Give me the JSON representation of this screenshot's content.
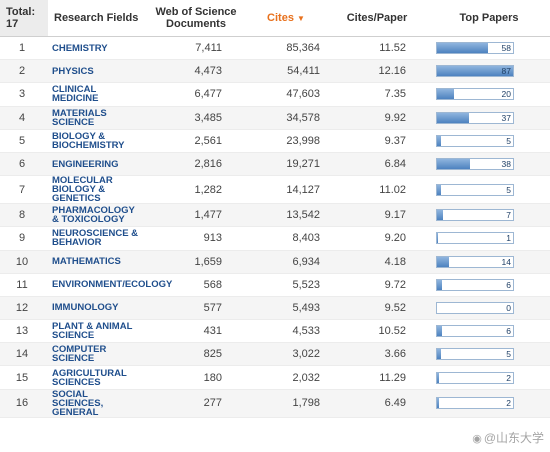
{
  "header": {
    "rank": "Total: 17",
    "field": "Research Fields",
    "docs": "Web of Science Documents",
    "cites": "Cites",
    "cites_per_paper": "Cites/Paper",
    "top_papers": "Top Papers"
  },
  "colors": {
    "accent": "#e8711d",
    "link": "#1f4e8c",
    "bar": "#4d82bf"
  },
  "icons": {
    "sort": "sort-desc-icon",
    "watermark": "weibo-icon"
  },
  "top_papers_scale_max": 87,
  "rows": [
    {
      "rank": "1",
      "field": "CHEMISTRY",
      "docs": "7,411",
      "cites": "85,364",
      "cpp": "11.52",
      "top": 58
    },
    {
      "rank": "2",
      "field": "PHYSICS",
      "docs": "4,473",
      "cites": "54,411",
      "cpp": "12.16",
      "top": 87
    },
    {
      "rank": "3",
      "field": "CLINICAL MEDICINE",
      "docs": "6,477",
      "cites": "47,603",
      "cpp": "7.35",
      "top": 20
    },
    {
      "rank": "4",
      "field": "MATERIALS SCIENCE",
      "docs": "3,485",
      "cites": "34,578",
      "cpp": "9.92",
      "top": 37
    },
    {
      "rank": "5",
      "field": "BIOLOGY & BIOCHEMISTRY",
      "docs": "2,561",
      "cites": "23,998",
      "cpp": "9.37",
      "top": 5
    },
    {
      "rank": "6",
      "field": "ENGINEERING",
      "docs": "2,816",
      "cites": "19,271",
      "cpp": "6.84",
      "top": 38
    },
    {
      "rank": "7",
      "field": "MOLECULAR BIOLOGY & GENETICS",
      "docs": "1,282",
      "cites": "14,127",
      "cpp": "11.02",
      "top": 5
    },
    {
      "rank": "8",
      "field": "PHARMACOLOGY & TOXICOLOGY",
      "docs": "1,477",
      "cites": "13,542",
      "cpp": "9.17",
      "top": 7
    },
    {
      "rank": "9",
      "field": "NEUROSCIENCE & BEHAVIOR",
      "docs": "913",
      "cites": "8,403",
      "cpp": "9.20",
      "top": 1
    },
    {
      "rank": "10",
      "field": "MATHEMATICS",
      "docs": "1,659",
      "cites": "6,934",
      "cpp": "4.18",
      "top": 14
    },
    {
      "rank": "11",
      "field": "ENVIRONMENT/ECOLOGY",
      "docs": "568",
      "cites": "5,523",
      "cpp": "9.72",
      "top": 6
    },
    {
      "rank": "12",
      "field": "IMMUNOLOGY",
      "docs": "577",
      "cites": "5,493",
      "cpp": "9.52",
      "top": 0
    },
    {
      "rank": "13",
      "field": "PLANT & ANIMAL SCIENCE",
      "docs": "431",
      "cites": "4,533",
      "cpp": "10.52",
      "top": 6
    },
    {
      "rank": "14",
      "field": "COMPUTER SCIENCE",
      "docs": "825",
      "cites": "3,022",
      "cpp": "3.66",
      "top": 5
    },
    {
      "rank": "15",
      "field": "AGRICULTURAL SCIENCES",
      "docs": "180",
      "cites": "2,032",
      "cpp": "11.29",
      "top": 2
    },
    {
      "rank": "16",
      "field": "SOCIAL SCIENCES, GENERAL",
      "docs": "277",
      "cites": "1,798",
      "cpp": "6.49",
      "top": 2
    }
  ],
  "watermark": "@山东大学"
}
